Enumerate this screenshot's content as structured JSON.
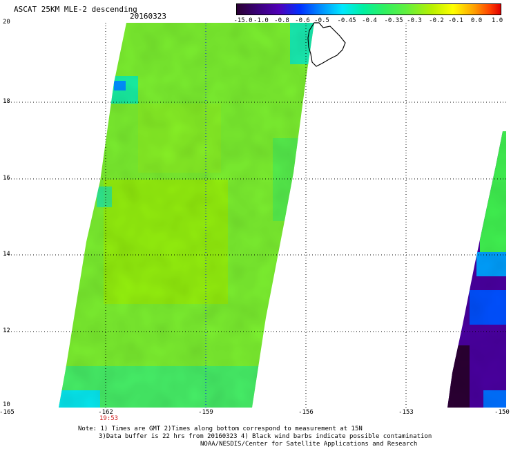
{
  "header": {
    "title": "ASCAT 25KM MLE-2 descending",
    "date": "20160323"
  },
  "colorbar": {
    "labels": [
      "-15.0",
      "-1.0",
      "-0.8",
      "-0.6",
      "-0.5",
      "-0.45",
      "-0.4",
      "-0.35",
      "-0.3",
      "-0.2",
      "-0.1",
      "0.0",
      "1.0"
    ],
    "colors": [
      "#2b0033",
      "#3a007a",
      "#5000b8",
      "#0030ff",
      "#0090ff",
      "#00e8ff",
      "#00f0a0",
      "#30f060",
      "#60f040",
      "#b8f000",
      "#ffff00",
      "#ffa000",
      "#ff4000",
      "#e00000"
    ]
  },
  "axes": {
    "y_labels": [
      "20",
      "18",
      "16",
      "14",
      "12",
      "10"
    ],
    "x_labels": [
      "-165",
      "-162",
      "-159",
      "-156",
      "-153",
      "-150"
    ],
    "pass_time": "19:53"
  },
  "notes": [
    "Note: 1) Times are GMT 2)Times along bottom correspond to measurement at 15N",
    "3)Data buffer is 22 hrs from 20160323 4) Black wind barbs indicate possible contamination",
    "NOAA/NESDIS/Center for Satellite Applications and Research"
  ],
  "map_data": {
    "lat_range": [
      10,
      20
    ],
    "lon_range": [
      -165,
      -150
    ],
    "swaths": [
      {
        "name": "",
        "dominant_value_range": "-0.35 to -0.3",
        "color": "#7cf030"
      },
      {
        "name": "",
        "dominant_value_range": "-1.0 to -0.5",
        "color": "#4a00a0"
      }
    ]
  }
}
